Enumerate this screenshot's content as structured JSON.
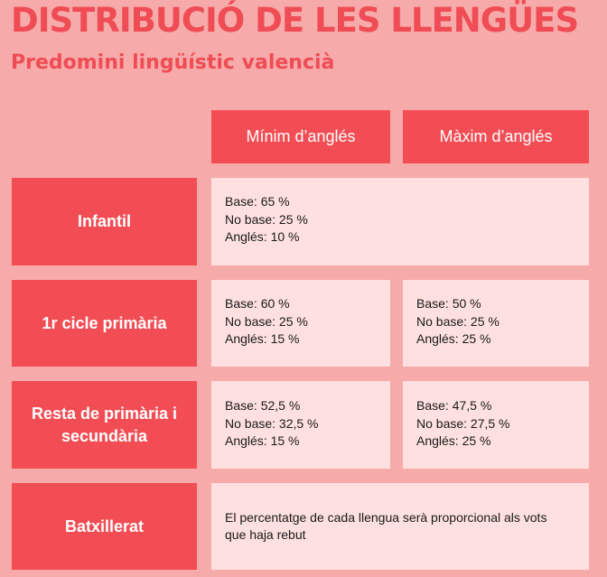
{
  "title": "DISTRIBUCIÓ DE LES LLENGÜES",
  "subtitle": "Predomini lingüístic valencià",
  "columns": [
    "Mínim d’anglés",
    "Màxim d’anglés"
  ],
  "rows": [
    {
      "label": "Infantil",
      "shared": [
        "Base: 65 %",
        "No base: 25 %",
        "Anglés: 10 %"
      ]
    },
    {
      "label": "1r cicle primària",
      "min": [
        "Base: 60 %",
        "No base: 25 %",
        "Anglés: 15 %"
      ],
      "max": [
        "Base: 50 %",
        "No base: 25 %",
        "Anglés: 25 %"
      ]
    },
    {
      "label": "Resta de primària i secundària",
      "min": [
        "Base: 52,5 %",
        "No base: 32,5 %",
        "Anglés: 15 %"
      ],
      "max": [
        "Base: 47,5 %",
        "No base: 27,5 %",
        "Anglés: 25 %"
      ]
    },
    {
      "label": "Batxillerat",
      "note": "El percentatge de cada llengua serà proporcional als vots que haja rebut"
    }
  ]
}
